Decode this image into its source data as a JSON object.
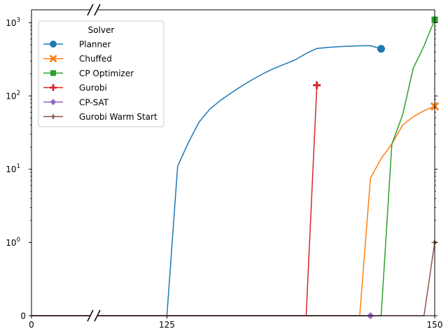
{
  "chart_data": {
    "type": "line",
    "title": "",
    "xlabel": "",
    "ylabel": "",
    "x_axis": {
      "broken": true,
      "segments": [
        [
          0,
          5
        ],
        [
          118.5,
          150
        ]
      ],
      "ticks": [
        {
          "value": 0,
          "label": "0"
        },
        {
          "value": 125,
          "label": "125"
        },
        {
          "value": 150,
          "label": "150"
        }
      ]
    },
    "y_axis": {
      "scale": "symlog",
      "linthresh": 1,
      "range": [
        0,
        1500
      ],
      "ticks": [
        {
          "value": 0,
          "label": "0",
          "base": "0",
          "exp": ""
        },
        {
          "value": 1,
          "label": "10^0",
          "base": "10",
          "exp": "0"
        },
        {
          "value": 10,
          "label": "10^1",
          "base": "10",
          "exp": "1"
        },
        {
          "value": 100,
          "label": "10^2",
          "base": "10",
          "exp": "2"
        },
        {
          "value": 1000,
          "label": "10^3",
          "base": "10",
          "exp": "3"
        }
      ]
    },
    "grid": false,
    "legend": {
      "title": "Solver",
      "placement": "upper-left"
    },
    "series": [
      {
        "name": "Planner",
        "color": "#1f77b4",
        "marker": "circle",
        "x": [
          0,
          5,
          118.5,
          125,
          126,
          127,
          128,
          129,
          130,
          131,
          132,
          133,
          134,
          135,
          136,
          137,
          138,
          139,
          140,
          141,
          142,
          143,
          144,
          145
        ],
        "y": [
          0,
          0,
          0,
          0,
          11,
          23,
          44,
          66,
          87,
          110,
          137,
          168,
          202,
          238,
          272,
          312,
          380,
          445,
          460,
          470,
          478,
          483,
          486,
          440
        ]
      },
      {
        "name": "Chuffed",
        "color": "#ff7f0e",
        "marker": "x",
        "x": [
          0,
          5,
          118.5,
          143,
          144,
          145,
          146,
          147,
          148,
          149,
          150
        ],
        "y": [
          0,
          0,
          0,
          0,
          7.5,
          14,
          22,
          40,
          52,
          63,
          72
        ]
      },
      {
        "name": "CP Optimizer",
        "color": "#2ca02c",
        "marker": "square",
        "x": [
          0,
          5,
          118.5,
          145,
          146,
          147,
          148,
          149,
          150
        ],
        "y": [
          0,
          0,
          0,
          0,
          22,
          55,
          240,
          480,
          1100
        ]
      },
      {
        "name": "Gurobi",
        "color": "#d62728",
        "marker": "plus",
        "x": [
          0,
          5,
          118.5,
          138,
          139
        ],
        "y": [
          0,
          0,
          0,
          0,
          140
        ]
      },
      {
        "name": "CP-SAT",
        "color": "#9467bd",
        "marker": "diamond",
        "x": [
          0,
          5,
          118.5,
          144
        ],
        "y": [
          0,
          0,
          0,
          0
        ]
      },
      {
        "name": "Gurobi Warm Start",
        "color": "#8c564b",
        "marker": "star",
        "x": [
          0,
          5,
          118.5,
          149,
          150
        ],
        "y": [
          0,
          0,
          0,
          0,
          1
        ]
      }
    ]
  }
}
